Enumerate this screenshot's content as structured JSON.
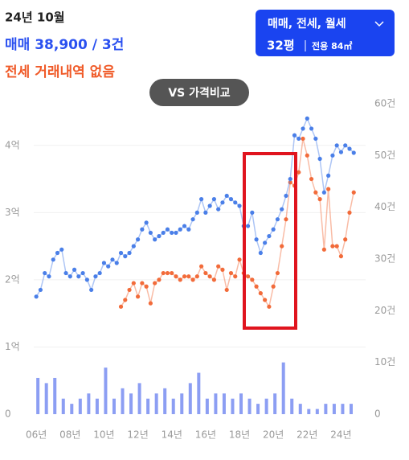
{
  "header": {
    "date": "24년 10월",
    "sale": "매매 38,900 / 3건",
    "jeonse": "전세 거래내역 없음"
  },
  "filter": {
    "types": "매매, 전세, 월세",
    "size": "32평",
    "area": "전용 84㎡"
  },
  "compare_button": "VS 가격비교",
  "chart_data": [
    {
      "type": "line",
      "x": [
        2006,
        2006.25,
        2006.5,
        2006.75,
        2007,
        2007.25,
        2007.5,
        2007.75,
        2008,
        2008.25,
        2008.5,
        2008.75,
        2009,
        2009.25,
        2009.5,
        2009.75,
        2010,
        2010.25,
        2010.5,
        2010.75,
        2011,
        2011.25,
        2011.5,
        2011.75,
        2012,
        2012.25,
        2012.5,
        2012.75,
        2013,
        2013.25,
        2013.5,
        2013.75,
        2014,
        2014.25,
        2014.5,
        2014.75,
        2015,
        2015.25,
        2015.5,
        2015.75,
        2016,
        2016.25,
        2016.5,
        2016.75,
        2017,
        2017.25,
        2017.5,
        2017.75,
        2018,
        2018.25,
        2018.5,
        2018.75,
        2019,
        2019.25,
        2019.5,
        2019.75,
        2020,
        2020.25,
        2020.5,
        2020.75,
        2021,
        2021.25,
        2021.5,
        2021.75,
        2022,
        2022.25,
        2022.5,
        2022.75,
        2023,
        2023.25,
        2023.5,
        2023.75,
        2024,
        2024.25,
        2024.5,
        2024.75
      ],
      "series": [
        {
          "color": "#4a7fe8",
          "values": [
            1.75,
            1.85,
            2.1,
            2.05,
            2.3,
            2.4,
            2.45,
            2.1,
            2.05,
            2.15,
            2.05,
            2.1,
            2.0,
            1.85,
            2.05,
            2.1,
            2.25,
            2.2,
            2.3,
            2.25,
            2.4,
            2.35,
            2.4,
            2.5,
            2.6,
            2.75,
            2.85,
            2.7,
            2.6,
            2.65,
            2.7,
            2.75,
            2.7,
            2.7,
            2.75,
            2.8,
            2.75,
            2.9,
            3.0,
            3.2,
            3.0,
            3.1,
            3.2,
            3.05,
            3.15,
            3.25,
            3.2,
            3.15,
            3.1,
            2.8,
            2.8,
            3.0,
            2.6,
            2.4,
            2.55,
            2.65,
            2.75,
            2.9,
            3.05,
            3.25,
            3.5,
            4.15,
            4.1,
            4.25,
            4.4,
            4.25,
            4.1,
            3.8,
            3.3,
            3.55,
            3.85,
            4.0,
            3.9,
            4.0,
            3.95,
            3.89
          ]
        },
        {
          "color": "#f26b3a",
          "values": [
            null,
            null,
            null,
            null,
            null,
            null,
            null,
            null,
            null,
            null,
            null,
            null,
            null,
            null,
            null,
            null,
            null,
            null,
            null,
            null,
            1.6,
            1.7,
            1.85,
            1.95,
            1.75,
            1.95,
            1.9,
            1.65,
            1.95,
            2.0,
            2.1,
            2.1,
            2.1,
            2.05,
            2.0,
            2.05,
            2.05,
            2.0,
            2.05,
            2.2,
            2.1,
            2.05,
            2.0,
            2.2,
            2.15,
            1.85,
            2.1,
            2.05,
            2.3,
            2.1,
            2.05,
            2.0,
            1.9,
            1.8,
            1.7,
            1.6,
            1.9,
            2.1,
            2.5,
            2.9,
            3.45,
            3.4,
            3.6,
            4.1,
            3.85,
            3.5,
            3.3,
            3.2,
            2.45,
            3.35,
            2.5,
            2.5,
            2.35,
            2.6,
            3.0,
            3.3
          ]
        }
      ],
      "xlim": [
        2005.85,
        2025.45
      ],
      "xticks": [
        {
          "value": 2006,
          "label": "06년"
        },
        {
          "value": 2008,
          "label": "08년"
        },
        {
          "value": 2010,
          "label": "10년"
        },
        {
          "value": 2012,
          "label": "12년"
        },
        {
          "value": 2014,
          "label": "14년"
        },
        {
          "value": 2016,
          "label": "16년"
        },
        {
          "value": 2018,
          "label": "18년"
        },
        {
          "value": 2020,
          "label": "20년"
        },
        {
          "value": 2022,
          "label": "22년"
        },
        {
          "value": 2024,
          "label": "24년"
        }
      ],
      "ylim": [
        0,
        4.62
      ],
      "yticks": [
        0,
        {
          "value": 1,
          "label": "1억"
        },
        {
          "value": 2,
          "label": "2억"
        },
        {
          "value": 3,
          "label": "3억"
        },
        {
          "value": 4,
          "label": "4억"
        }
      ],
      "grid": true
    },
    {
      "type": "bar",
      "x": [
        2006,
        2006.5,
        2007,
        2007.5,
        2008,
        2008.5,
        2009,
        2009.5,
        2010,
        2010.5,
        2011,
        2011.5,
        2012,
        2012.5,
        2013,
        2013.5,
        2014,
        2014.5,
        2015,
        2015.5,
        2016,
        2016.5,
        2017,
        2017.5,
        2018,
        2018.5,
        2019,
        2019.5,
        2020,
        2020.5,
        2021,
        2021.5,
        2022,
        2022.5,
        2023,
        2023.5,
        2024,
        2024.5
      ],
      "values": [
        7,
        6,
        7,
        3,
        2,
        3,
        4,
        3,
        9,
        3,
        5,
        4,
        6,
        3,
        4,
        5,
        3,
        4,
        6,
        8,
        3,
        4,
        4,
        3,
        4,
        3,
        2,
        3,
        4,
        10,
        3,
        2,
        1,
        1,
        2,
        2,
        2,
        2
      ],
      "color": "#6f86f0",
      "xlim": [
        2005.85,
        2025.45
      ],
      "ylim": [
        0,
        60
      ],
      "yticks": [
        0,
        {
          "value": 10,
          "label": "10건"
        },
        {
          "value": 20,
          "label": "20건"
        },
        {
          "value": 30,
          "label": "30건"
        },
        {
          "value": 40,
          "label": "40건"
        },
        {
          "value": 50,
          "label": "50건"
        },
        {
          "value": 60,
          "label": "60건"
        }
      ]
    }
  ]
}
